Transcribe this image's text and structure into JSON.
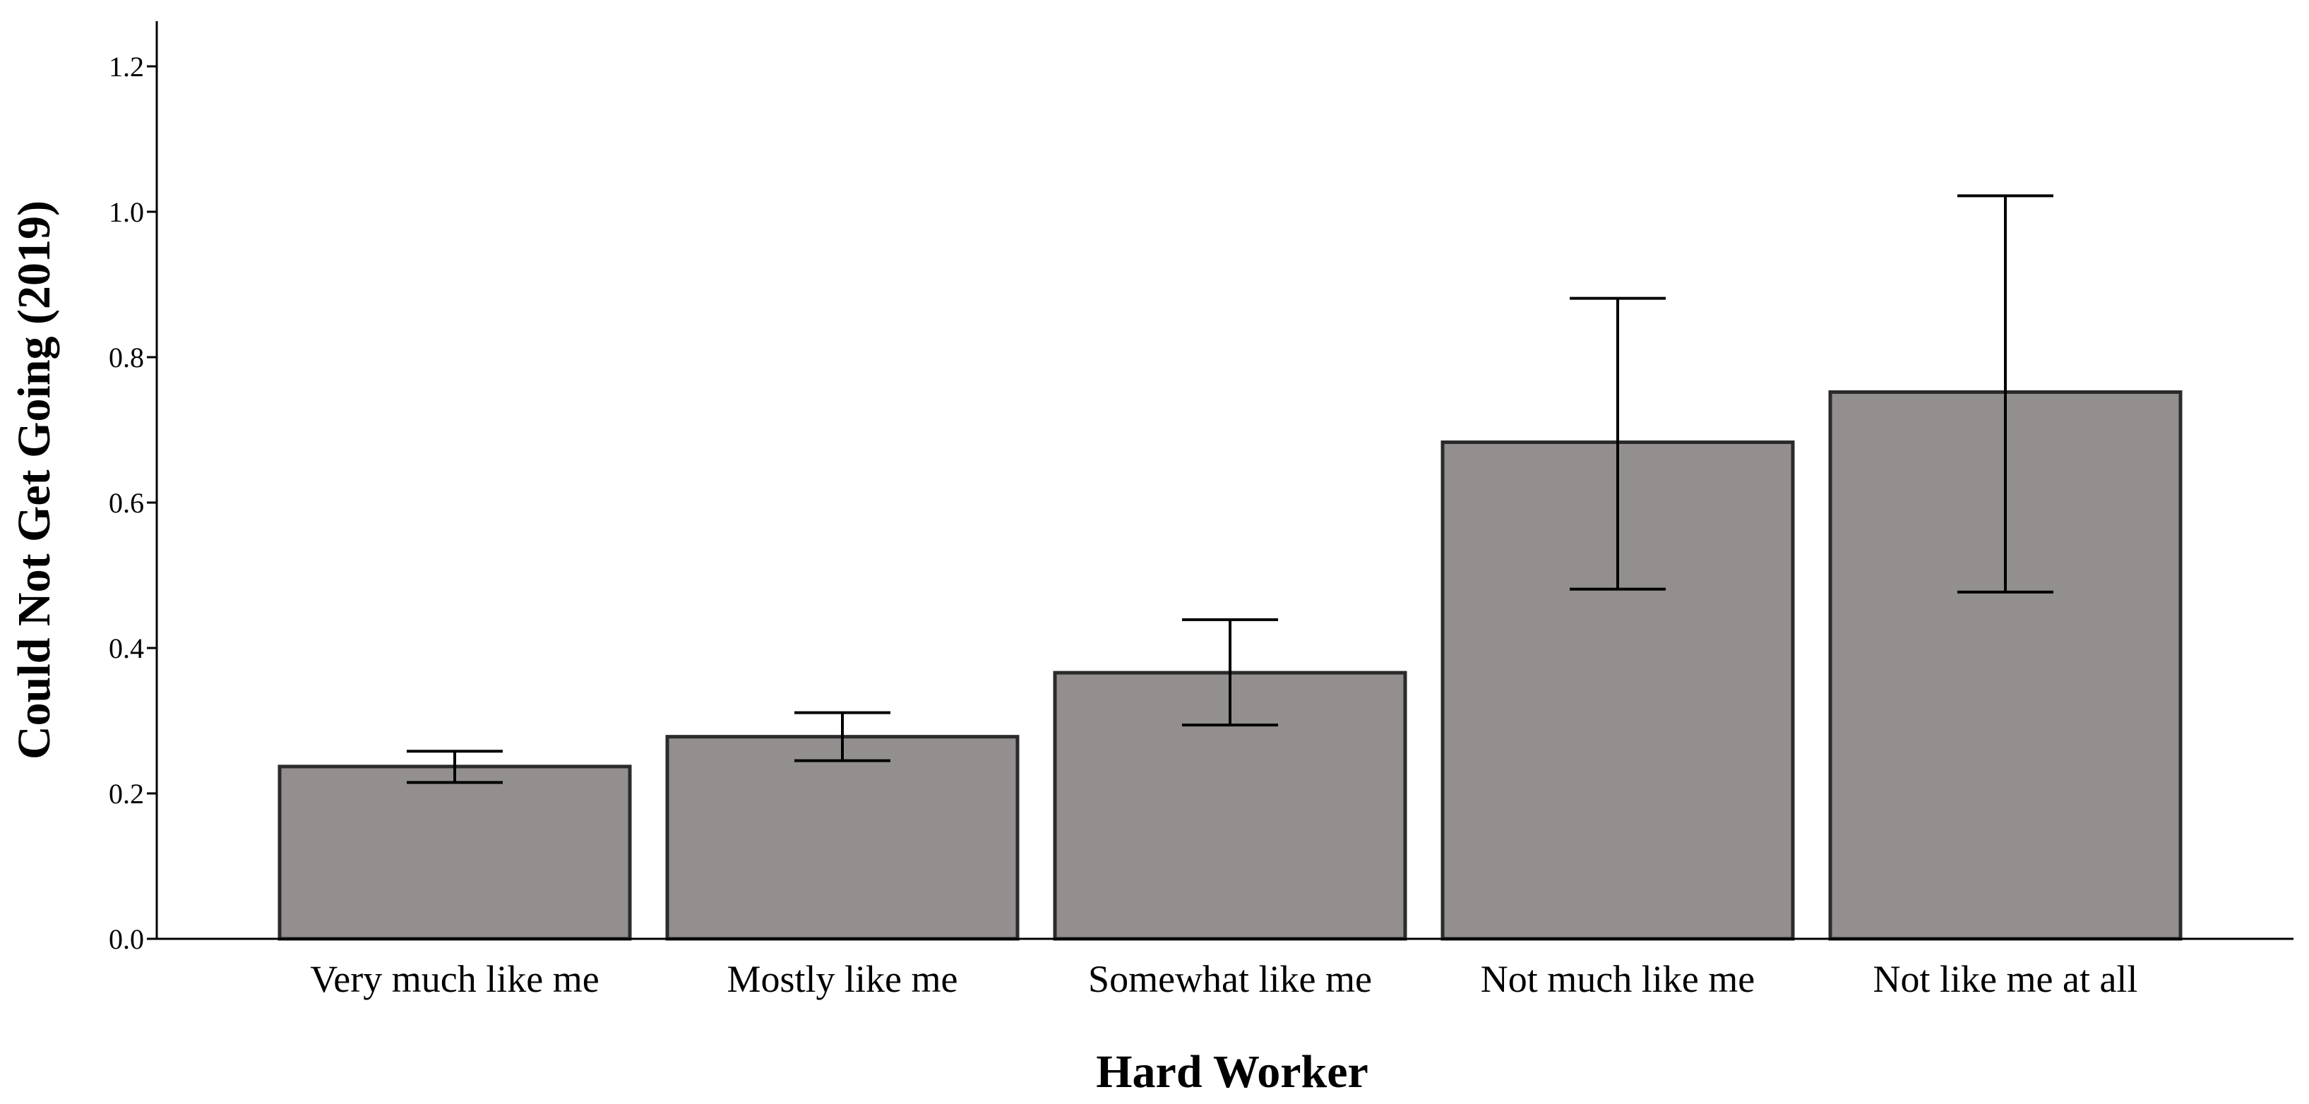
{
  "chart_data": {
    "type": "bar",
    "title": "",
    "xlabel": "Hard Worker",
    "ylabel": "Could Not Get Going (2019)",
    "categories": [
      "Very much like me",
      "Mostly like me",
      "Somewhat like me",
      "Not much like me",
      "Not like me at all"
    ],
    "values": [
      0.237,
      0.278,
      0.366,
      0.683,
      0.752
    ],
    "error_low": [
      0.215,
      0.245,
      0.294,
      0.481,
      0.477
    ],
    "error_high": [
      0.258,
      0.311,
      0.439,
      0.881,
      1.022
    ],
    "ylim": [
      0,
      1.25
    ],
    "yticks": [
      "0.0",
      "0.2",
      "0.4",
      "0.6",
      "0.8",
      "1.0",
      "1.2"
    ],
    "ytick_values": [
      0,
      0.2,
      0.4,
      0.6,
      0.8,
      1.0,
      1.2
    ],
    "grid": false,
    "colors": {
      "bar_fill": "#928f8e",
      "bar_stroke": "#2b2b2b",
      "axis": "#000000"
    }
  }
}
